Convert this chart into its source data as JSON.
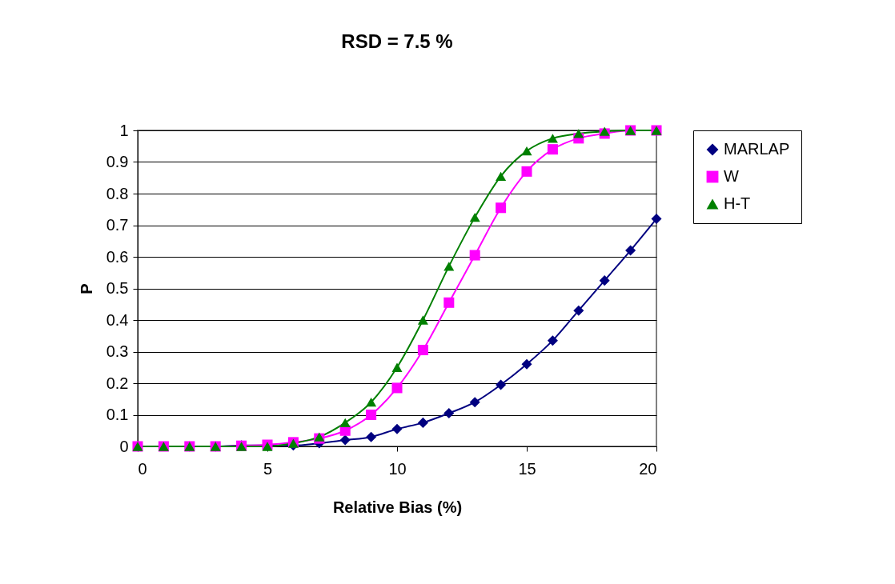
{
  "chart_data": {
    "type": "line",
    "title": "RSD = 7.5 %",
    "xlabel": "Relative Bias (%)",
    "ylabel": "P",
    "x": [
      0,
      1,
      2,
      3,
      4,
      5,
      6,
      7,
      8,
      9,
      10,
      11,
      12,
      13,
      14,
      15,
      16,
      17,
      18,
      19,
      20
    ],
    "series": [
      {
        "name": "MARLAP",
        "color": "#000080",
        "marker": "diamond",
        "values": [
          null,
          null,
          0,
          0,
          0.003,
          0.003,
          0.003,
          0.01,
          0.02,
          0.03,
          0.055,
          0.075,
          0.105,
          0.14,
          0.195,
          0.26,
          0.335,
          0.43,
          0.525,
          0.62,
          0.72
        ]
      },
      {
        "name": "W",
        "color": "#ff00ff",
        "marker": "square",
        "values": [
          0,
          0,
          0,
          0,
          0.002,
          0.005,
          0.013,
          0.025,
          0.05,
          0.1,
          0.185,
          0.305,
          0.455,
          0.605,
          0.755,
          0.87,
          0.94,
          0.975,
          0.99,
          1,
          1
        ]
      },
      {
        "name": "H-T",
        "color": "#008000",
        "marker": "triangle",
        "values": [
          0,
          0,
          0,
          0,
          0,
          0,
          0.01,
          0.03,
          0.075,
          0.14,
          0.25,
          0.4,
          0.57,
          0.725,
          0.855,
          0.935,
          0.975,
          0.99,
          0.997,
          1,
          1
        ]
      }
    ],
    "xlim": [
      0,
      20
    ],
    "xticks": [
      0,
      5,
      10,
      15,
      20
    ],
    "ylim": [
      0,
      1
    ],
    "yticks": [
      0,
      0.1,
      0.2,
      0.3,
      0.4,
      0.5,
      0.6,
      0.7,
      0.8,
      0.9,
      1
    ],
    "grid": "y",
    "legend": "right"
  }
}
